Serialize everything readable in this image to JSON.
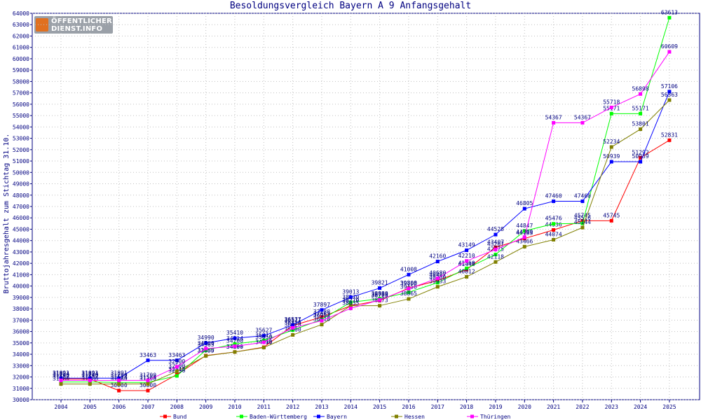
{
  "chart_data": {
    "type": "line",
    "title": "Besoldungsvergleich Bayern A 9 Anfangsgehalt",
    "xlabel": "",
    "ylabel": "Bruttojahresgehalt zum Stichtag 31.10.",
    "ylim": [
      30000,
      64000
    ],
    "y_ticks": [
      30000,
      31000,
      32000,
      33000,
      34000,
      35000,
      36000,
      37000,
      38000,
      39000,
      40000,
      41000,
      42000,
      43000,
      44000,
      45000,
      46000,
      47000,
      48000,
      49000,
      50000,
      51000,
      52000,
      53000,
      54000,
      55000,
      56000,
      57000,
      58000,
      59000,
      60000,
      61000,
      62000,
      63000,
      64000
    ],
    "categories": [
      "2004",
      "2005",
      "2006",
      "2007",
      "2008",
      "2009",
      "2010",
      "2011",
      "2012",
      "2013",
      "2014",
      "2015",
      "2016",
      "2017",
      "2018",
      "2019",
      "2020",
      "2021",
      "2022",
      "2023",
      "2024",
      "2025"
    ],
    "grid": true,
    "legend_position": "bottom",
    "series": [
      {
        "name": "Bund",
        "color": "#ff0000",
        "values": [
          31824,
          31824,
          30800,
          30800,
          32218,
          33880,
          34200,
          34618,
          36521,
          37280,
          38270,
          38723,
          39808,
          40487,
          41448,
          43407,
          44183,
          44936,
          45745,
          45745,
          51292,
          52831
        ]
      },
      {
        "name": "Baden-Württemberg",
        "color": "#00ff00",
        "values": [
          31557,
          31557,
          31524,
          31524,
          32096,
          34363,
          34914,
          35211,
          36120,
          37062,
          38570,
          38880,
          39450,
          40300,
          41560,
          42775,
          44847,
          45476,
          45516,
          55171,
          55171,
          63613
        ]
      },
      {
        "name": "Bayern",
        "color": "#0000ff",
        "values": [
          31891,
          31891,
          31891,
          33463,
          33463,
          34990,
          35410,
          35627,
          36577,
          37897,
          39013,
          39821,
          41008,
          42160,
          43149,
          44528,
          46805,
          47460,
          47460,
          50939,
          50939,
          57106
        ]
      },
      {
        "name": "Hessen",
        "color": "#808000",
        "values": [
          31380,
          31380,
          31380,
          31390,
          32500,
          33855,
          34199,
          34590,
          35700,
          36610,
          38270,
          38273,
          38865,
          39933,
          40812,
          42118,
          43466,
          44074,
          45144,
          52234,
          53801,
          56363
        ]
      },
      {
        "name": "Thüringen",
        "color": "#ff00ff",
        "values": [
          31700,
          31700,
          31700,
          31700,
          32900,
          34500,
          34700,
          35050,
          36326,
          36953,
          38035,
          38780,
          39760,
          40680,
          42210,
          43207,
          44300,
          54367,
          54367,
          55718,
          56898,
          60609
        ]
      }
    ]
  },
  "logo": {
    "line1": "ÖFFENTLICHER",
    "line2": "DIENST.INFO"
  }
}
